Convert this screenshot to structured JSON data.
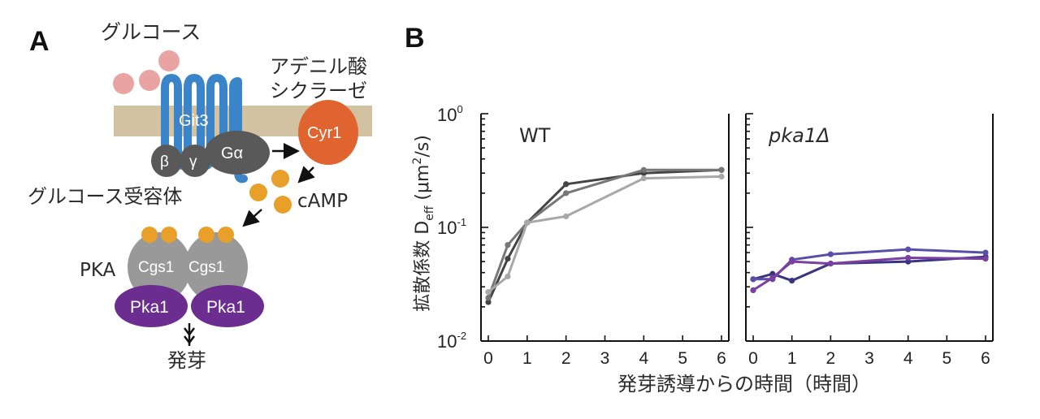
{
  "colors": {
    "membrane": "#d3c2a2",
    "receptor": "#3a85c9",
    "glucose": "#e9a3a3",
    "cyr1": "#e0642f",
    "camp": "#e8a02a",
    "gsubunit": "#595959",
    "cgs1": "#999999",
    "pka1": "#6b2e90",
    "wt_series": [
      "#444444",
      "#777777",
      "#a8a8a8"
    ],
    "pka_series": [
      "#3a3580",
      "#5a4fa8",
      "#7b3fa0"
    ]
  },
  "panelA": {
    "panel_label": "A",
    "glucose_label": "グルコース",
    "adenylate_line1": "アデニル酸",
    "adenylate_line2": "シクラーゼ",
    "git3_label": "Git3",
    "beta_label": "β",
    "gamma_label": "γ",
    "galpha_label": "Gα",
    "cyr1_label": "Cyr1",
    "receptor_label": "グルコース受容体",
    "camp_label": "cAMP",
    "pka_label": "PKA",
    "cgs1_label": "Cgs1",
    "pka1_label": "Pka1",
    "germination_label": "発芽"
  },
  "panelB": {
    "panel_label": "B",
    "ylabel_main": "拡散係数 D",
    "ylabel_sub": "eff",
    "ylabel_unit_pre": " (μm",
    "ylabel_unit_sup": "2",
    "ylabel_unit_post": "/s)",
    "xlabel": "発芽誘導からの時間（時間）",
    "ytick_labels": [
      {
        "base": "10",
        "exp": "0"
      },
      {
        "base": "10",
        "exp": "-1"
      },
      {
        "base": "10",
        "exp": "-2"
      }
    ]
  },
  "chart_data": [
    {
      "type": "line",
      "title": "WT",
      "xlabel": "発芽誘導からの時間（時間）",
      "ylabel": "拡散係数 Deff (μm2/s)",
      "yscale": "log",
      "ylim": [
        0.01,
        1
      ],
      "xlim": [
        0,
        6
      ],
      "xticks": [
        0,
        1,
        2,
        3,
        4,
        5,
        6
      ],
      "series": [
        {
          "x": [
            0,
            0.5,
            1,
            2,
            4,
            6
          ],
          "values": [
            0.022,
            0.053,
            0.11,
            0.24,
            0.3,
            0.32
          ]
        },
        {
          "x": [
            0,
            0.5,
            1,
            2,
            4,
            6
          ],
          "values": [
            0.024,
            0.07,
            0.11,
            0.2,
            0.32,
            0.32
          ]
        },
        {
          "x": [
            0,
            0.5,
            1,
            2,
            4,
            6
          ],
          "values": [
            0.027,
            0.037,
            0.11,
            0.125,
            0.27,
            0.28
          ]
        }
      ]
    },
    {
      "type": "line",
      "title": "pka1Δ",
      "yscale": "log",
      "ylim": [
        0.01,
        1
      ],
      "xlim": [
        0,
        6
      ],
      "xticks": [
        0,
        1,
        2,
        3,
        4,
        5,
        6
      ],
      "series": [
        {
          "x": [
            0,
            0.5,
            1,
            2,
            4,
            6
          ],
          "values": [
            0.035,
            0.039,
            0.034,
            0.048,
            0.05,
            0.055
          ]
        },
        {
          "x": [
            0,
            0.5,
            1,
            2,
            4,
            6
          ],
          "values": [
            0.035,
            0.035,
            0.052,
            0.058,
            0.064,
            0.06
          ]
        },
        {
          "x": [
            0,
            0.5,
            1,
            2,
            4,
            6
          ],
          "values": [
            0.028,
            0.036,
            0.05,
            0.048,
            0.054,
            0.053
          ]
        }
      ]
    }
  ]
}
